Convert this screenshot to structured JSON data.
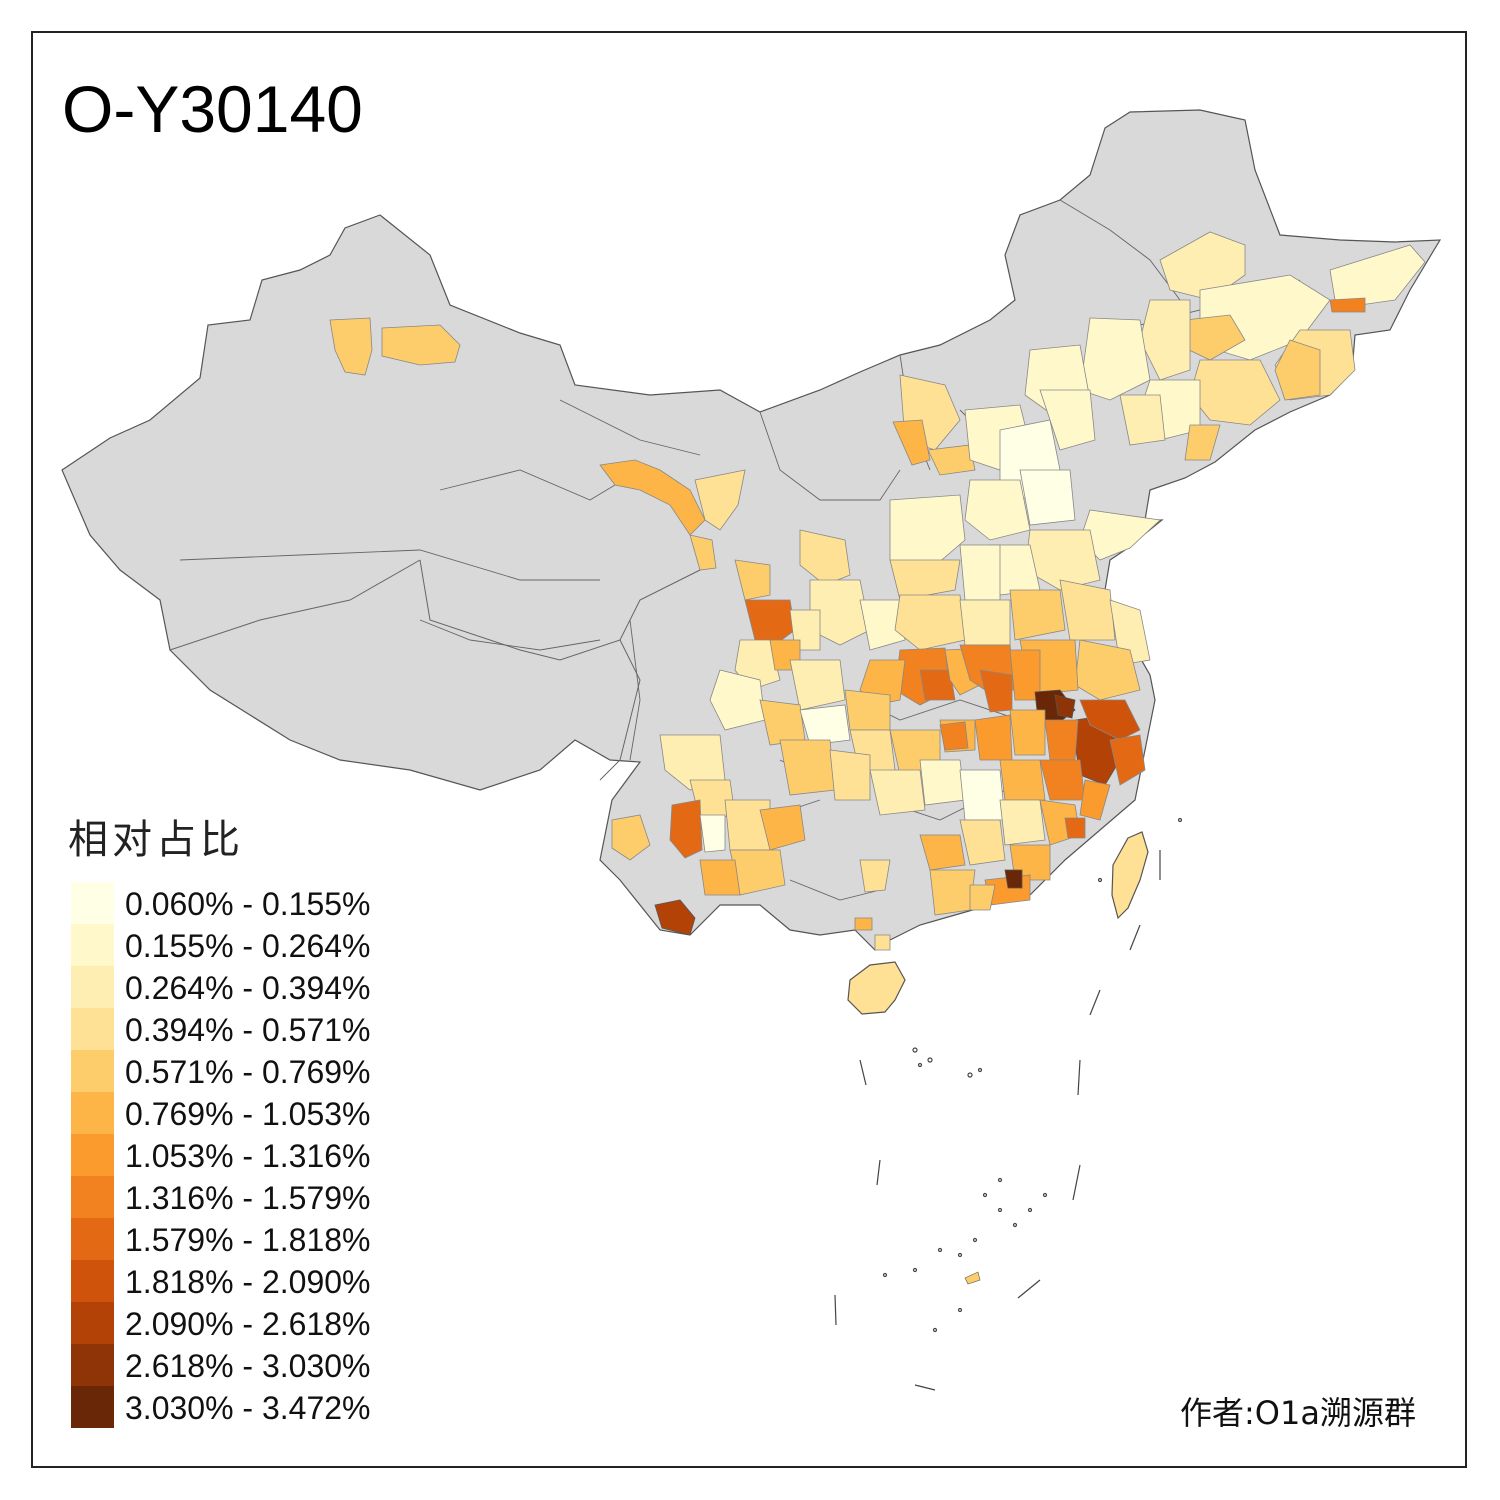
{
  "title": "O-Y30140",
  "legend": {
    "title": "相对占比",
    "items": [
      {
        "label": "0.060% - 0.155%",
        "color": "#FFFFE5"
      },
      {
        "label": "0.155% - 0.264%",
        "color": "#FFF8CB"
      },
      {
        "label": "0.264% - 0.394%",
        "color": "#FEEEB2"
      },
      {
        "label": "0.394% - 0.571%",
        "color": "#FEE195"
      },
      {
        "label": "0.571% - 0.769%",
        "color": "#FECD6B"
      },
      {
        "label": "0.769% - 1.053%",
        "color": "#FDB547"
      },
      {
        "label": "1.053% - 1.316%",
        "color": "#FB9B2E"
      },
      {
        "label": "1.316% - 1.579%",
        "color": "#F2821F"
      },
      {
        "label": "1.579% - 1.818%",
        "color": "#E46914"
      },
      {
        "label": "1.818% - 2.090%",
        "color": "#CF530B"
      },
      {
        "label": "2.090% - 2.618%",
        "color": "#B34206"
      },
      {
        "label": "2.618% - 3.030%",
        "color": "#8F3406"
      },
      {
        "label": "3.030% - 3.472%",
        "color": "#6A2707"
      }
    ]
  },
  "credit": "作者:O1a溯源群",
  "colors": {
    "no_data": "#D9D9D9",
    "border": "#555555",
    "frame": "#222222"
  }
}
